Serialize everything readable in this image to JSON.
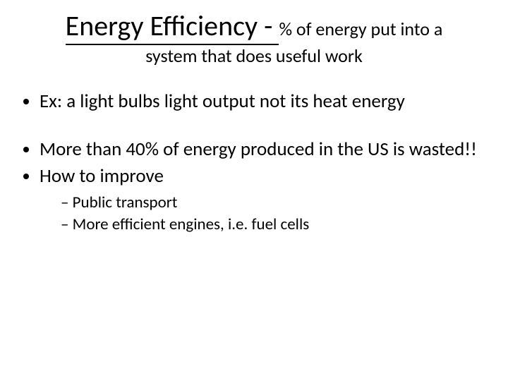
{
  "title": {
    "main": "Energy Efficiency - ",
    "continuation": "% of energy put into a",
    "line2": "system that does useful work",
    "main_fontsize": 40,
    "cont_fontsize": 26,
    "underline_color": "#000000"
  },
  "bullets": [
    {
      "text": "Ex: a light bulbs light output not its heat energy",
      "gap_before": false
    },
    {
      "text": "More than 40% of energy produced in the US is wasted!!",
      "gap_before": true
    },
    {
      "text": "How to improve",
      "gap_before": false
    }
  ],
  "sub_bullets": [
    {
      "text": "Public transport"
    },
    {
      "text": "More efficient engines, i.e. fuel cells"
    }
  ],
  "colors": {
    "background": "#ffffff",
    "text": "#000000"
  },
  "fonts": {
    "body_fontsize": 27,
    "sub_fontsize": 23,
    "family": "Calibri"
  }
}
